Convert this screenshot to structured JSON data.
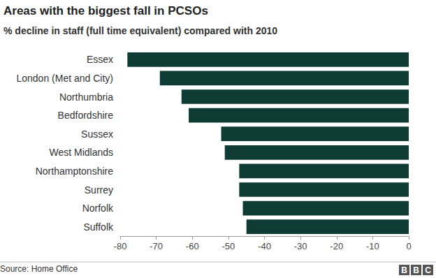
{
  "chart_data": {
    "type": "bar",
    "orientation": "horizontal",
    "title": "Areas with the biggest fall in PCSOs",
    "subtitle": "% decline in staff (full time equivalent) compared with 2010",
    "source": "Source: Home Office",
    "logo": "BBC",
    "categories": [
      "Essex",
      "London (Met and City)",
      "Northumbria",
      "Bedfordshire",
      "Sussex",
      "West Midlands",
      "Northamptonshire",
      "Surrey",
      "Norfolk",
      "Suffolk"
    ],
    "values": [
      -78,
      -69,
      -63,
      -61,
      -52,
      -51,
      -47,
      -47,
      -46,
      -45
    ],
    "color": "#0e3b34",
    "xlim": [
      -80,
      0
    ],
    "xticks": [
      -80,
      -70,
      -60,
      -50,
      -40,
      -30,
      -20,
      -10,
      0
    ],
    "grid": false
  }
}
